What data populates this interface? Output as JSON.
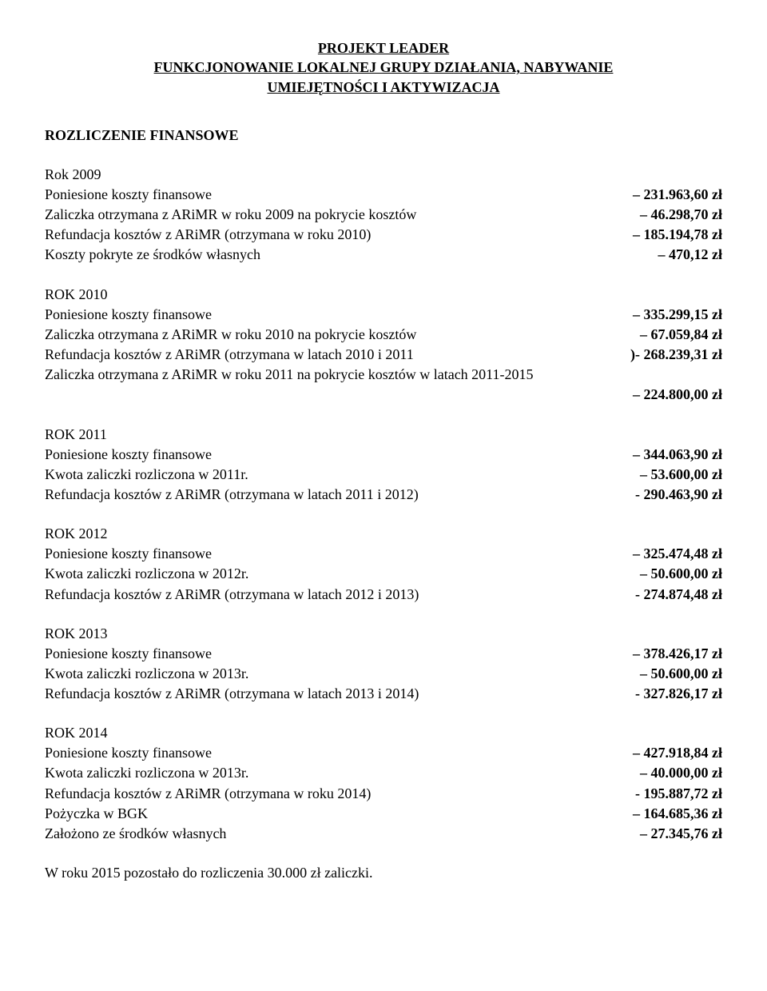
{
  "title": {
    "line1": "PROJEKT LEADER",
    "line2": "FUNKCJONOWANIE LOKALNEJ GRUPY DZIAŁANIA, NABYWANIE",
    "line3": "UMIEJĘTNOŚCI I AKTYWIZACJA"
  },
  "subhead": "ROZLICZENIE FINANSOWE",
  "year2009": {
    "label": "Rok 2009",
    "rows": [
      {
        "label": "Poniesione koszty finansowe",
        "value": "– 231.963,60 zł",
        "bold": true
      },
      {
        "label": "Zaliczka otrzymana z ARiMR  w roku 2009 na pokrycie kosztów",
        "value": "– 46.298,70 zł",
        "bold": true
      },
      {
        "label": "Refundacja kosztów z ARiMR (otrzymana w roku 2010)",
        "value": "– 185.194,78 zł",
        "bold": true
      },
      {
        "label": "Koszty pokryte ze środków własnych",
        "value": "– 470,12 zł",
        "bold": true
      }
    ]
  },
  "year2010": {
    "label": "ROK 2010",
    "rows": [
      {
        "label": "Poniesione koszty finansowe",
        "value": "– 335.299,15 zł",
        "bold": true
      },
      {
        "label": "Zaliczka otrzymana z ARiMR  w roku 2010 na pokrycie kosztów",
        "value": "– 67.059,84 zł",
        "bold": true
      },
      {
        "label": "Refundacja kosztów z ARiMR (otrzymana w latach 2010 i 2011",
        "value": ")- 268.239,31 zł",
        "bold": true
      }
    ],
    "wrap_line": "Zaliczka otrzymana z ARiMR  w roku 2011 na pokrycie kosztów w latach 2011-2015",
    "wrap_value": "– 224.800,00 zł"
  },
  "year2011": {
    "label": "ROK 2011",
    "rows": [
      {
        "label": "Poniesione koszty finansowe",
        "value": "– 344.063,90 zł",
        "bold": true
      },
      {
        "label": "Kwota zaliczki rozliczona w 2011r.",
        "value": "– 53.600,00 zł",
        "bold": true
      },
      {
        "label": "Refundacja kosztów z ARiMR (otrzymana w latach 2011 i 2012)",
        "value": "- 290.463,90 zł",
        "bold": true
      }
    ]
  },
  "year2012": {
    "label": "ROK 2012",
    "rows": [
      {
        "label": "Poniesione koszty finansowe",
        "value": "– 325.474,48 zł",
        "bold": true
      },
      {
        "label": "Kwota zaliczki rozliczona w 2012r.",
        "value": "– 50.600,00 zł",
        "bold": true
      },
      {
        "label": "Refundacja kosztów z ARiMR (otrzymana w latach 2012 i 2013)",
        "value": "- 274.874,48 zł",
        "bold": true
      }
    ]
  },
  "year2013": {
    "label": "ROK 2013",
    "rows": [
      {
        "label": "Poniesione koszty finansowe",
        "value": "– 378.426,17 zł",
        "bold": true
      },
      {
        "label": "Kwota zaliczki rozliczona w 2013r.",
        "value": "– 50.600,00 zł",
        "bold": true
      },
      {
        "label": "Refundacja kosztów z ARiMR (otrzymana w latach 2013 i 2014)",
        "value": "- 327.826,17 zł",
        "bold": true
      }
    ]
  },
  "year2014": {
    "label": "ROK 2014",
    "rows": [
      {
        "label": "Poniesione koszty finansowe",
        "value": "– 427.918,84 zł",
        "bold": true
      },
      {
        "label": "Kwota zaliczki rozliczona w 2013r.",
        "value": "– 40.000,00 zł",
        "bold": true
      },
      {
        "label": "Refundacja kosztów z ARiMR (otrzymana w roku 2014)",
        "value": "- 195.887,72 zł",
        "bold": true
      },
      {
        "label": "Pożyczka w BGK",
        "value": "– 164.685,36 zł",
        "bold": true
      },
      {
        "label": "Założono ze środków własnych",
        "value": "– 27.345,76 zł",
        "bold": true
      }
    ]
  },
  "closing": "W roku 2015 pozostało do rozliczenia 30.000 zł zaliczki."
}
